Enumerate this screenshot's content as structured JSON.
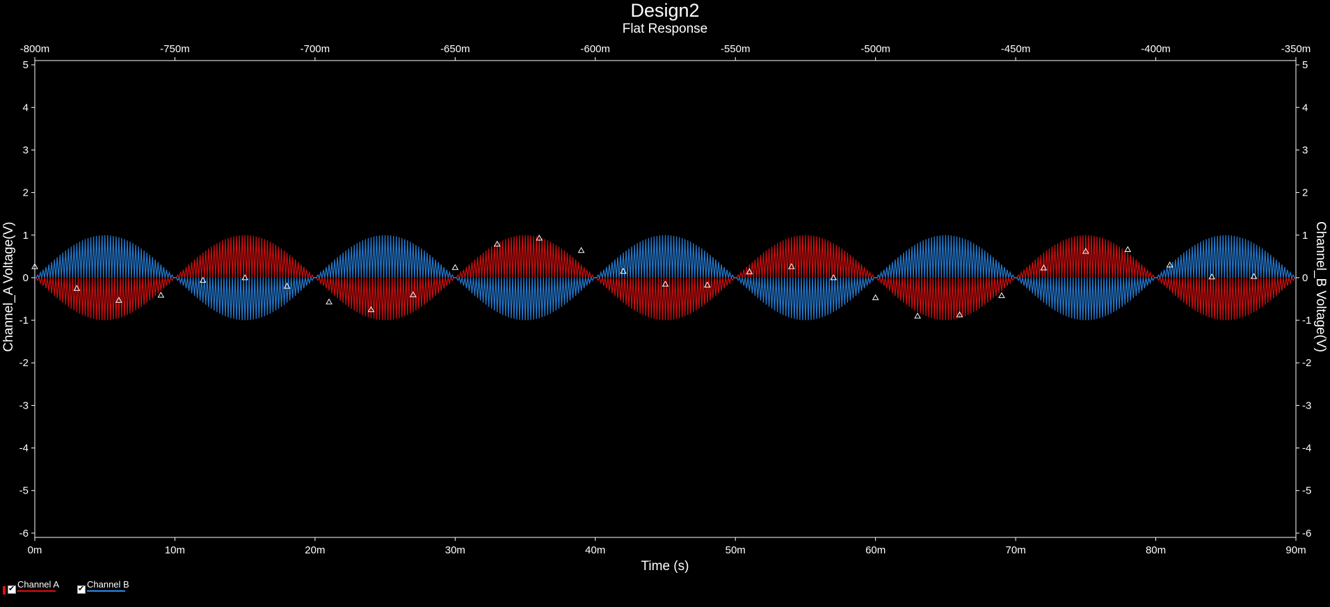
{
  "window": {
    "title": "Design2",
    "subtitle": "Flat Response"
  },
  "chart_data": {
    "type": "line",
    "title": "Design2",
    "subtitle": "Flat Response",
    "xlabel": "Time (s)",
    "ylabel_left": "Channel_A Voltage(V)",
    "ylabel_right": "Channel_B Voltage(V)",
    "xlim": [
      0,
      0.09
    ],
    "x_ticks": [
      "0m",
      "10m",
      "20m",
      "30m",
      "40m",
      "50m",
      "60m",
      "70m",
      "80m",
      "90m"
    ],
    "x2lim": [
      -0.8,
      -0.35
    ],
    "x2_ticks": [
      "-800m",
      "-750m",
      "-700m",
      "-650m",
      "-600m",
      "-550m",
      "-500m",
      "-450m",
      "-400m",
      "-350m"
    ],
    "ylim": [
      -6.1,
      5.1
    ],
    "y_ticks": [
      5,
      4,
      3,
      2,
      1,
      0,
      -1,
      -2,
      -3,
      -4,
      -5,
      -6
    ],
    "grid": false,
    "legend_position": "bottom-left",
    "series": [
      {
        "name": "Channel A",
        "color": "#e01010",
        "waveform": "am-carrier",
        "carrier_freq_hz": 5000,
        "envelope_amplitude_v": 1.0,
        "envelope_period_s": 0.02,
        "envelope_phase": "negative-first"
      },
      {
        "name": "Channel B",
        "color": "#2a8cf0",
        "waveform": "am-carrier",
        "carrier_freq_hz": 5000,
        "envelope_amplitude_v": 1.0,
        "envelope_period_s": 0.02,
        "envelope_phase": "positive-first"
      }
    ],
    "markers": {
      "shape": "triangle",
      "color": "#ffffff",
      "x": [
        0.0,
        0.003,
        0.006,
        0.009,
        0.012,
        0.015,
        0.018,
        0.021,
        0.024,
        0.027,
        0.03,
        0.033,
        0.036,
        0.039,
        0.042,
        0.045,
        0.048,
        0.051,
        0.054,
        0.057,
        0.06,
        0.063,
        0.066,
        0.069,
        0.072,
        0.075,
        0.078,
        0.081,
        0.084,
        0.087
      ],
      "y": [
        0.26,
        -0.25,
        -0.53,
        -0.41,
        -0.06,
        0.0,
        -0.2,
        -0.57,
        -0.75,
        -0.4,
        0.24,
        0.79,
        0.93,
        0.64,
        0.15,
        -0.15,
        -0.17,
        0.14,
        0.26,
        0.0,
        -0.47,
        -0.9,
        -0.87,
        -0.42,
        0.23,
        0.62,
        0.66,
        0.3,
        0.02,
        0.03
      ]
    }
  },
  "legend": {
    "items": [
      {
        "label": "Channel A",
        "color": "#e01010"
      },
      {
        "label": "Channel B",
        "color": "#2a8cf0"
      }
    ]
  }
}
